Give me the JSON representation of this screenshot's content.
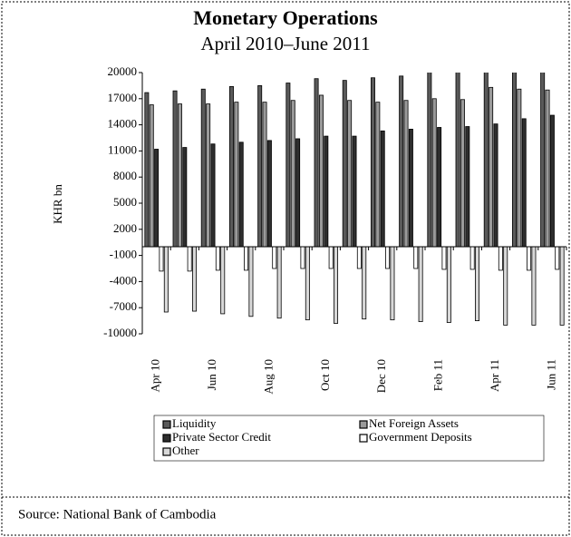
{
  "chart_data": {
    "type": "bar",
    "title": "Monetary Operations",
    "subtitle": "April 2010–June 2011",
    "y_label": "KHR bn",
    "source": "Source: National Bank of Cambodia",
    "categories": [
      "Apr 10",
      null,
      "Jun 10",
      null,
      "Aug 10",
      null,
      "Oct 10",
      null,
      "Dec 10",
      null,
      "Feb 11",
      null,
      "Apr 11",
      null,
      "Jun 11"
    ],
    "series": [
      {
        "name": "Liquidity",
        "color": "#5a5a5a",
        "values": [
          17700,
          17900,
          18100,
          18400,
          18500,
          18800,
          19300,
          19100,
          19400,
          19600,
          20100,
          20300,
          20400,
          20600,
          20800
        ]
      },
      {
        "name": "Net Foreign Assets",
        "color": "#9a9a9a",
        "values": [
          16300,
          16400,
          16400,
          16600,
          16600,
          16800,
          17400,
          16800,
          16600,
          16800,
          17000,
          16900,
          18300,
          18100,
          18000
        ]
      },
      {
        "name": "Private Sector Credit",
        "color": "#2e2e2e",
        "values": [
          11200,
          11400,
          11800,
          12000,
          12200,
          12400,
          12700,
          12700,
          13300,
          13500,
          13700,
          13800,
          14100,
          14700,
          15100
        ]
      },
      {
        "name": "Government Deposits",
        "color": "#ffffff",
        "values": [
          -2800,
          -2800,
          -2700,
          -2700,
          -2500,
          -2500,
          -2500,
          -2500,
          -2500,
          -2500,
          -2600,
          -2600,
          -2700,
          -2700,
          -2600
        ]
      },
      {
        "name": "Other",
        "color": "#d8d8d8",
        "values": [
          -7500,
          -7400,
          -7700,
          -8000,
          -8200,
          -8400,
          -8800,
          -8300,
          -8400,
          -8600,
          -8700,
          -8500,
          -9000,
          -9000,
          -9000
        ]
      }
    ],
    "ylim": [
      -10000,
      20000
    ],
    "yticks": [
      20000,
      17000,
      14000,
      11000,
      8000,
      5000,
      2000,
      -1000,
      -4000,
      -7000,
      -10000
    ],
    "legend": "bottom"
  }
}
